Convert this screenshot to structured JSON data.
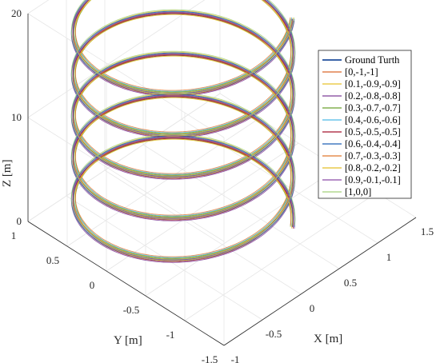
{
  "chart_data": {
    "type": "line3d",
    "title": "",
    "xlabel": "X [m]",
    "ylabel": "Y [m]",
    "zlabel": "Z [m]",
    "xlim": [
      -1,
      1.5
    ],
    "ylim": [
      -1.5,
      1
    ],
    "zlim": [
      0,
      20
    ],
    "xticks": [
      "-1",
      "-0.5",
      "0",
      "0.5",
      "1",
      "1.5"
    ],
    "yticks": [
      "-1.5",
      "-1",
      "-0.5",
      "0",
      "0.5",
      "1"
    ],
    "zticks": [
      "0",
      "10",
      "20"
    ],
    "grid": true,
    "legend_position": "top-right",
    "trajectory": {
      "shape": "helix",
      "center": [
        0,
        0
      ],
      "radius": 1,
      "turns": 5,
      "z_start": 0,
      "z_end": 20
    },
    "series": [
      {
        "name": "Ground Turth",
        "color": "#1f4e9c"
      },
      {
        "name": "[0,-1,-1]",
        "color": "#d9682a"
      },
      {
        "name": "[0.1,-0.9,-0.9]",
        "color": "#e8c22a"
      },
      {
        "name": "[0.2,-0.8,-0.8]",
        "color": "#7e3f98"
      },
      {
        "name": "[0.3,-0.7,-0.7]",
        "color": "#6aa12f"
      },
      {
        "name": "[0.4,-0.6,-0.6]",
        "color": "#4cb9e6"
      },
      {
        "name": "[0.5,-0.5,-0.5]",
        "color": "#a3142f"
      },
      {
        "name": "[0.6,-0.4,-0.4]",
        "color": "#1f5fb4"
      },
      {
        "name": "[0.7,-0.3,-0.3]",
        "color": "#e0782f"
      },
      {
        "name": "[0.8,-0.2,-0.2]",
        "color": "#e3bf27"
      },
      {
        "name": "[0.9,-0.1,-0.1]",
        "color": "#8a4aa6"
      },
      {
        "name": "[1,0,0]",
        "color": "#a5d07a"
      }
    ]
  }
}
